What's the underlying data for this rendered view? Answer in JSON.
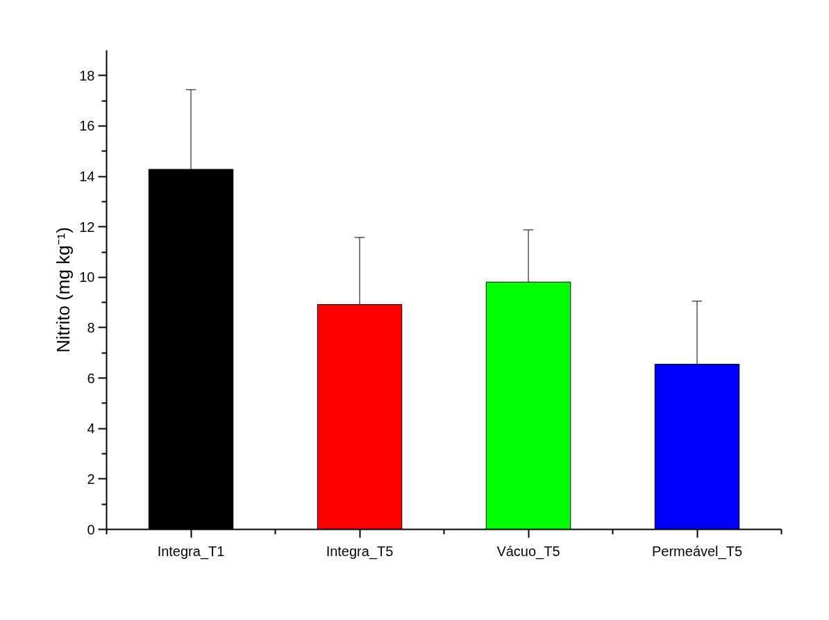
{
  "chart_data": {
    "type": "bar",
    "ylabel": "Nitrito (mg kg⁻¹)",
    "categories": [
      "Integra_T1",
      "Integra_T5",
      "Vácuo_T5",
      "Permeável_T5"
    ],
    "values": [
      14.28,
      8.92,
      9.81,
      6.55
    ],
    "colors": [
      "#000000",
      "#ff0000",
      "#00ff00",
      "#0000ff"
    ],
    "errors": [
      [
        14.28,
        17.44
      ],
      [
        8.92,
        11.58
      ],
      [
        9.81,
        11.88
      ],
      [
        6.55,
        9.05
      ]
    ],
    "ylim": [
      0,
      19
    ],
    "yticks": [
      0,
      {
        "value": 1,
        "label": null
      },
      2,
      {
        "value": 3,
        "label": null
      },
      4,
      {
        "value": 5,
        "label": null
      },
      6,
      {
        "value": 7,
        "label": null
      },
      8,
      {
        "value": 9,
        "label": null
      },
      10,
      {
        "value": 11,
        "label": null
      },
      12,
      {
        "value": 13,
        "label": null
      },
      14,
      {
        "value": 15,
        "label": null
      },
      16,
      {
        "value": 17,
        "label": null
      },
      18
    ],
    "grid": false
  }
}
